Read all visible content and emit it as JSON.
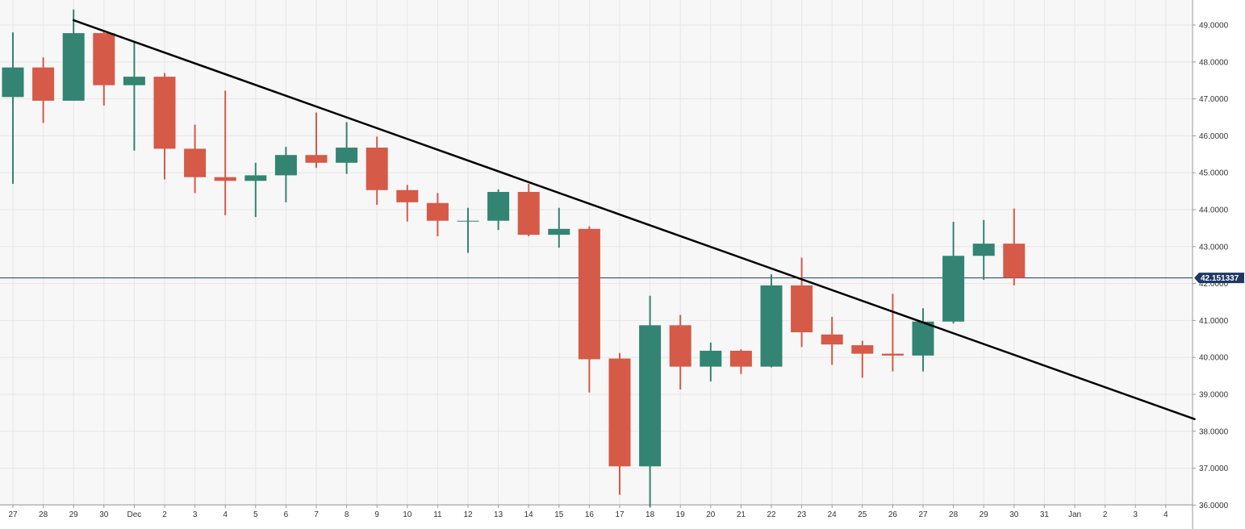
{
  "chart_data": {
    "type": "candlestick",
    "x_tick_labels": [
      "27",
      "28",
      "29",
      "30",
      "Dec",
      "2",
      "3",
      "4",
      "5",
      "6",
      "7",
      "8",
      "9",
      "10",
      "11",
      "12",
      "13",
      "14",
      "15",
      "16",
      "17",
      "18",
      "19",
      "20",
      "21",
      "22",
      "23",
      "24",
      "25",
      "26",
      "27",
      "28",
      "29",
      "30",
      "31",
      "Jan",
      "2",
      "3",
      "4"
    ],
    "y_tick_labels": [
      "49.0000",
      "48.0000",
      "47.0000",
      "46.0000",
      "45.0000",
      "44.0000",
      "43.0000",
      "42.0000",
      "41.0000",
      "40.0000",
      "39.0000",
      "38.0000",
      "37.0000",
      "36.0000"
    ],
    "ylim": [
      36,
      49.0
    ],
    "candles": [
      {
        "date": "27",
        "open": 47.05,
        "high": 48.8,
        "low": 44.7,
        "close": 47.85
      },
      {
        "date": "28",
        "open": 47.85,
        "high": 48.12,
        "low": 46.35,
        "close": 46.95
      },
      {
        "date": "29",
        "open": 46.95,
        "high": 49.42,
        "low": 46.95,
        "close": 48.78
      },
      {
        "date": "30",
        "open": 48.78,
        "high": 48.85,
        "low": 46.82,
        "close": 47.37
      },
      {
        "date": "Dec",
        "open": 47.37,
        "high": 48.55,
        "low": 45.6,
        "close": 47.6
      },
      {
        "date": "2",
        "open": 47.6,
        "high": 47.7,
        "low": 44.82,
        "close": 45.65
      },
      {
        "date": "3",
        "open": 45.65,
        "high": 46.3,
        "low": 44.45,
        "close": 44.88
      },
      {
        "date": "4",
        "open": 44.88,
        "high": 47.22,
        "low": 43.85,
        "close": 44.78
      },
      {
        "date": "5",
        "open": 44.78,
        "high": 45.27,
        "low": 43.8,
        "close": 44.93
      },
      {
        "date": "6",
        "open": 44.93,
        "high": 45.7,
        "low": 44.2,
        "close": 45.48
      },
      {
        "date": "7",
        "open": 45.48,
        "high": 46.63,
        "low": 45.13,
        "close": 45.27
      },
      {
        "date": "8",
        "open": 45.27,
        "high": 46.37,
        "low": 44.97,
        "close": 45.68
      },
      {
        "date": "9",
        "open": 45.68,
        "high": 45.98,
        "low": 44.13,
        "close": 44.53
      },
      {
        "date": "10",
        "open": 44.53,
        "high": 44.67,
        "low": 43.68,
        "close": 44.2
      },
      {
        "date": "11",
        "open": 44.18,
        "high": 44.45,
        "low": 43.28,
        "close": 43.7
      },
      {
        "date": "12",
        "open": 43.7,
        "high": 44.05,
        "low": 42.83,
        "close": 43.7
      },
      {
        "date": "13",
        "open": 43.7,
        "high": 44.55,
        "low": 43.45,
        "close": 44.48
      },
      {
        "date": "14",
        "open": 44.48,
        "high": 44.7,
        "low": 43.28,
        "close": 43.32
      },
      {
        "date": "15",
        "open": 43.32,
        "high": 44.05,
        "low": 42.97,
        "close": 43.48
      },
      {
        "date": "16",
        "open": 43.48,
        "high": 43.55,
        "low": 39.05,
        "close": 39.95
      },
      {
        "date": "17",
        "open": 39.97,
        "high": 40.12,
        "low": 36.28,
        "close": 37.05
      },
      {
        "date": "18",
        "open": 37.05,
        "high": 41.67,
        "low": 35.95,
        "close": 40.87
      },
      {
        "date": "19",
        "open": 40.87,
        "high": 41.15,
        "low": 39.13,
        "close": 39.75
      },
      {
        "date": "20",
        "open": 39.75,
        "high": 40.4,
        "low": 39.35,
        "close": 40.18
      },
      {
        "date": "21",
        "open": 40.18,
        "high": 40.22,
        "low": 39.55,
        "close": 39.75
      },
      {
        "date": "22",
        "open": 39.75,
        "high": 42.25,
        "low": 39.73,
        "close": 41.95
      },
      {
        "date": "23",
        "open": 41.95,
        "high": 42.7,
        "low": 40.28,
        "close": 40.68
      },
      {
        "date": "24",
        "open": 40.62,
        "high": 41.1,
        "low": 39.8,
        "close": 40.35
      },
      {
        "date": "25",
        "open": 40.33,
        "high": 40.45,
        "low": 39.45,
        "close": 40.1
      },
      {
        "date": "26",
        "open": 40.1,
        "high": 41.72,
        "low": 39.62,
        "close": 40.05
      },
      {
        "date": "27",
        "open": 40.05,
        "high": 41.33,
        "low": 39.62,
        "close": 40.97
      },
      {
        "date": "28",
        "open": 40.97,
        "high": 43.67,
        "low": 40.92,
        "close": 42.75
      },
      {
        "date": "29",
        "open": 42.75,
        "high": 43.72,
        "low": 42.1,
        "close": 43.08
      },
      {
        "date": "30",
        "open": 43.08,
        "high": 44.03,
        "low": 41.95,
        "close": 42.15
      }
    ],
    "trendline": {
      "start": {
        "index": 2,
        "value": 49.13
      },
      "end": {
        "index": 38.95,
        "value": 38.33
      }
    },
    "current_price": {
      "value": 42.151337,
      "label": "42.151337"
    },
    "colors": {
      "up": "#338472",
      "down": "#d55a47",
      "trendline": "#000000",
      "price_line": "#1f3864",
      "price_label_bg": "#1f3864",
      "plot_bg": "#f7f7f7",
      "grid": "#e6e6e6"
    },
    "grid": true,
    "price_axis": "right"
  }
}
